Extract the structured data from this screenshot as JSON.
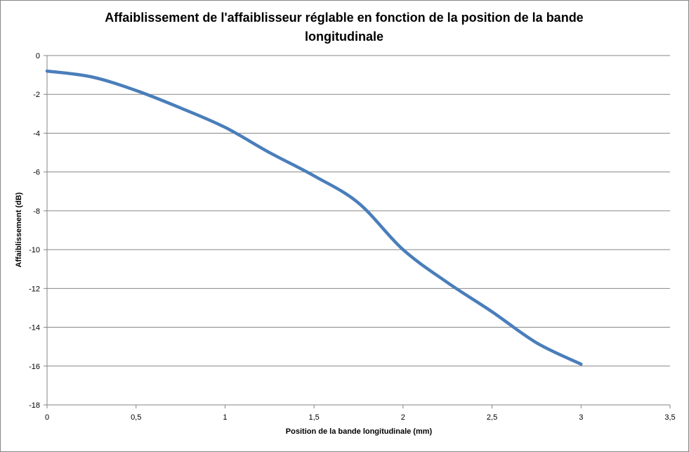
{
  "chart_data": {
    "type": "line",
    "title": "Affaiblissement de l'affaiblisseur réglable en fonction de la position de la bande longitudinale",
    "xlabel": "Position de la bande longitudinale (mm)",
    "ylabel": "Affaiblissement  (dB)",
    "xlim": [
      0,
      3.5
    ],
    "ylim": [
      -18,
      0
    ],
    "x_ticks": [
      "0",
      "0,5",
      "1",
      "1,5",
      "2",
      "2,5",
      "3",
      "3,5"
    ],
    "y_ticks": [
      "0",
      "-2",
      "-4",
      "-6",
      "-8",
      "-10",
      "-12",
      "-14",
      "-16",
      "-18"
    ],
    "grid": "horizontal",
    "legend": "none",
    "series": [
      {
        "color": "#4a7ebb",
        "x": [
          0,
          0.25,
          0.5,
          0.75,
          1,
          1.25,
          1.5,
          1.75,
          2,
          2.25,
          2.5,
          2.75,
          3
        ],
        "y": [
          -0.8,
          -1.1,
          -1.8,
          -2.7,
          -3.7,
          -5,
          -6.2,
          -7.6,
          -10,
          -11.7,
          -13.2,
          -14.8,
          -15.9
        ]
      }
    ]
  }
}
